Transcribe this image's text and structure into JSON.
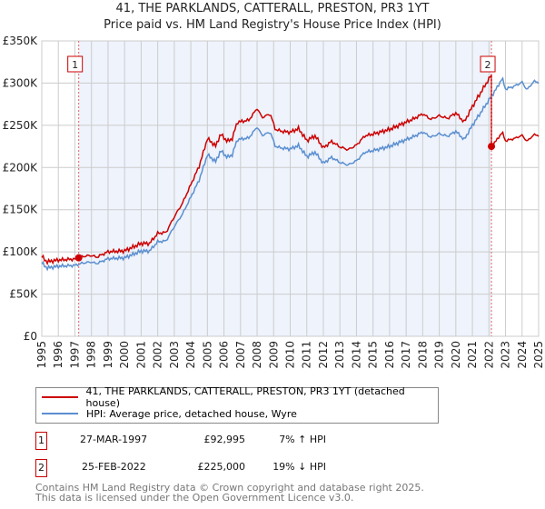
{
  "title_line1": "41, THE PARKLANDS, CATTERALL, PRESTON, PR3 1YT",
  "title_line2": "Price paid vs. HM Land Registry's House Price Index (HPI)",
  "colors": {
    "property": "#cc0000",
    "hpi": "#5b8fd0",
    "shade": "#eef3fc"
  },
  "chart_data": {
    "type": "line",
    "xlim": [
      1995,
      2025
    ],
    "ylim": [
      0,
      350000
    ],
    "yticks": [
      0,
      50000,
      100000,
      150000,
      200000,
      250000,
      300000,
      350000
    ],
    "ytick_labels": [
      "£0",
      "£50K",
      "£100K",
      "£150K",
      "£200K",
      "£250K",
      "£300K",
      "£350K"
    ],
    "xtick_labels": [
      "1995",
      "1996",
      "1997",
      "1998",
      "1999",
      "2000",
      "2001",
      "2002",
      "2003",
      "2004",
      "2005",
      "2006",
      "2007",
      "2008",
      "2009",
      "2010",
      "2011",
      "2012",
      "2013",
      "2014",
      "2015",
      "2016",
      "2017",
      "2018",
      "2019",
      "2020",
      "2021",
      "2022",
      "2023",
      "2024",
      "2025"
    ],
    "grid": true,
    "hpi_series": {
      "name": "HPI: Average price, detached house, Wyre",
      "x": [
        1995,
        1995.3,
        1996,
        1997,
        1997.5,
        1998,
        1998.3,
        1999,
        2000,
        2000.5,
        2001,
        2001.5,
        2002,
        2002.5,
        2003,
        2003.5,
        2004,
        2004.5,
        2005,
        2005.5,
        2005.8,
        2006.2,
        2006.5,
        2006.8,
        2007.5,
        2008,
        2008.3,
        2008.8,
        2009.1,
        2009.5,
        2010,
        2010.5,
        2011,
        2011.5,
        2012,
        2012.5,
        2013,
        2013.5,
        2014,
        2014.5,
        2015,
        2016,
        2016.5,
        2017,
        2017.5,
        2018,
        2018.5,
        2019,
        2019.5,
        2020,
        2020.5,
        2021,
        2021.5,
        2022,
        2022.5,
        2022.8,
        2023,
        2023.5,
        2024,
        2024.3,
        2024.7,
        2025
      ],
      "y": [
        87000,
        81000,
        83000,
        84000,
        87000,
        88000,
        86000,
        92000,
        93000,
        97000,
        101000,
        101000,
        112000,
        113000,
        130000,
        145000,
        165000,
        185000,
        215000,
        207000,
        220000,
        212000,
        215000,
        233000,
        235000,
        248000,
        238000,
        242000,
        225000,
        223000,
        222000,
        226000,
        213000,
        218000,
        205000,
        212000,
        206000,
        203000,
        208000,
        218000,
        220000,
        225000,
        229000,
        233000,
        237000,
        242000,
        236000,
        240000,
        237000,
        243000,
        233000,
        250000,
        265000,
        280000,
        295000,
        306000,
        293000,
        296000,
        301000,
        292000,
        302000,
        301000
      ]
    },
    "property_series": {
      "name": "41, THE PARKLANDS, CATTERALL, PRESTON, PR3 1YT (detached house)"
    },
    "sales": [
      {
        "id": "1",
        "date": "27-MAR-1997",
        "x": 1997.23,
        "price": 92995,
        "price_label": "£92,995",
        "hpi_diff": "7% ↑ HPI"
      },
      {
        "id": "2",
        "date": "25-FEB-2022",
        "x": 2022.15,
        "price": 225000,
        "price_label": "£225,000",
        "hpi_diff": "19% ↓ HPI"
      }
    ]
  },
  "footer_line1": "Contains HM Land Registry data © Crown copyright and database right 2025.",
  "footer_line2": "This data is licensed under the Open Government Licence v3.0."
}
